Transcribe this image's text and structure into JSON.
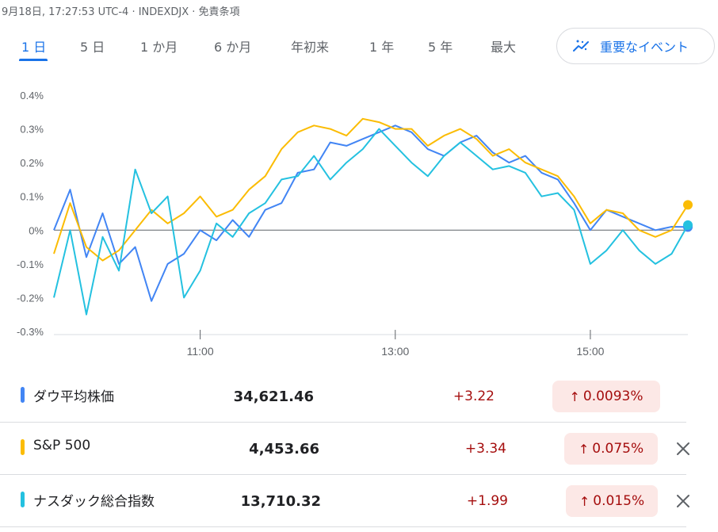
{
  "header": {
    "meta": "9月18日, 17:27:53 UTC-4 · INDEXDJX · 免責条項"
  },
  "tabs": [
    {
      "label": "1 日",
      "active": true
    },
    {
      "label": "5 日",
      "active": false
    },
    {
      "label": "1 か月",
      "active": false
    },
    {
      "label": "6 か月",
      "active": false
    },
    {
      "label": "年初来",
      "active": false
    },
    {
      "label": "1 年",
      "active": false
    },
    {
      "label": "5 年",
      "active": false
    },
    {
      "label": "最大",
      "active": false
    }
  ],
  "events_button": {
    "label": "重要なイベント",
    "icon": "trend-sparkle-icon"
  },
  "colors": {
    "dow": "#4285f4",
    "sp": "#fbbc04",
    "nasdaq": "#24c1e0",
    "accent": "#1a73e8",
    "negative": "#a50e0e",
    "negative_bg": "#fce8e6"
  },
  "chart_data": {
    "type": "line",
    "x_unit": "time of day",
    "x_range": [
      "09:30",
      "16:00"
    ],
    "x_ticks": [
      "11:00",
      "13:00",
      "15:00"
    ],
    "y_ticks": [
      "0.4%",
      "0.3%",
      "0.2%",
      "0.1%",
      "0%",
      "-0.1%",
      "-0.2%",
      "-0.3%"
    ],
    "ylim": [
      -0.3,
      0.4
    ],
    "baseline": 0,
    "series": [
      {
        "name": "ダウ平均株価",
        "color": "#4285f4",
        "points": [
          [
            "09:30",
            0.0
          ],
          [
            "09:40",
            0.12
          ],
          [
            "09:50",
            -0.08
          ],
          [
            "10:00",
            0.05
          ],
          [
            "10:10",
            -0.1
          ],
          [
            "10:20",
            -0.05
          ],
          [
            "10:30",
            -0.21
          ],
          [
            "10:40",
            -0.1
          ],
          [
            "10:50",
            -0.07
          ],
          [
            "11:00",
            0.0
          ],
          [
            "11:10",
            -0.03
          ],
          [
            "11:20",
            0.03
          ],
          [
            "11:30",
            -0.02
          ],
          [
            "11:40",
            0.06
          ],
          [
            "11:50",
            0.08
          ],
          [
            "12:00",
            0.17
          ],
          [
            "12:10",
            0.18
          ],
          [
            "12:20",
            0.26
          ],
          [
            "12:30",
            0.25
          ],
          [
            "12:40",
            0.27
          ],
          [
            "12:50",
            0.29
          ],
          [
            "13:00",
            0.31
          ],
          [
            "13:10",
            0.29
          ],
          [
            "13:20",
            0.24
          ],
          [
            "13:30",
            0.22
          ],
          [
            "13:40",
            0.26
          ],
          [
            "13:50",
            0.28
          ],
          [
            "14:00",
            0.23
          ],
          [
            "14:10",
            0.2
          ],
          [
            "14:20",
            0.22
          ],
          [
            "14:30",
            0.17
          ],
          [
            "14:40",
            0.15
          ],
          [
            "14:50",
            0.08
          ],
          [
            "15:00",
            0.0
          ],
          [
            "15:10",
            0.06
          ],
          [
            "15:20",
            0.04
          ],
          [
            "15:30",
            0.02
          ],
          [
            "15:40",
            0.0
          ],
          [
            "15:50",
            0.01
          ],
          [
            "16:00",
            0.0093
          ]
        ]
      },
      {
        "name": "S&P 500",
        "color": "#fbbc04",
        "points": [
          [
            "09:30",
            -0.07
          ],
          [
            "09:40",
            0.08
          ],
          [
            "09:50",
            -0.05
          ],
          [
            "10:00",
            -0.09
          ],
          [
            "10:10",
            -0.06
          ],
          [
            "10:20",
            0.0
          ],
          [
            "10:30",
            0.06
          ],
          [
            "10:40",
            0.02
          ],
          [
            "10:50",
            0.05
          ],
          [
            "11:00",
            0.1
          ],
          [
            "11:10",
            0.04
          ],
          [
            "11:20",
            0.06
          ],
          [
            "11:30",
            0.12
          ],
          [
            "11:40",
            0.16
          ],
          [
            "11:50",
            0.24
          ],
          [
            "12:00",
            0.29
          ],
          [
            "12:10",
            0.31
          ],
          [
            "12:20",
            0.3
          ],
          [
            "12:30",
            0.28
          ],
          [
            "12:40",
            0.33
          ],
          [
            "12:50",
            0.32
          ],
          [
            "13:00",
            0.3
          ],
          [
            "13:10",
            0.3
          ],
          [
            "13:20",
            0.25
          ],
          [
            "13:30",
            0.28
          ],
          [
            "13:40",
            0.3
          ],
          [
            "13:50",
            0.27
          ],
          [
            "14:00",
            0.22
          ],
          [
            "14:10",
            0.24
          ],
          [
            "14:20",
            0.2
          ],
          [
            "14:30",
            0.18
          ],
          [
            "14:40",
            0.16
          ],
          [
            "14:50",
            0.1
          ],
          [
            "15:00",
            0.02
          ],
          [
            "15:10",
            0.06
          ],
          [
            "15:20",
            0.05
          ],
          [
            "15:30",
            0.0
          ],
          [
            "15:40",
            -0.02
          ],
          [
            "15:50",
            0.0
          ],
          [
            "16:00",
            0.075
          ]
        ]
      },
      {
        "name": "ナスダック総合指数",
        "color": "#24c1e0",
        "points": [
          [
            "09:30",
            -0.2
          ],
          [
            "09:40",
            0.0
          ],
          [
            "09:50",
            -0.25
          ],
          [
            "10:00",
            -0.02
          ],
          [
            "10:10",
            -0.12
          ],
          [
            "10:20",
            0.18
          ],
          [
            "10:30",
            0.05
          ],
          [
            "10:40",
            0.1
          ],
          [
            "10:50",
            -0.2
          ],
          [
            "11:00",
            -0.12
          ],
          [
            "11:10",
            0.02
          ],
          [
            "11:20",
            -0.02
          ],
          [
            "11:30",
            0.05
          ],
          [
            "11:40",
            0.08
          ],
          [
            "11:50",
            0.15
          ],
          [
            "12:00",
            0.16
          ],
          [
            "12:10",
            0.22
          ],
          [
            "12:20",
            0.15
          ],
          [
            "12:30",
            0.2
          ],
          [
            "12:40",
            0.24
          ],
          [
            "12:50",
            0.3
          ],
          [
            "13:00",
            0.25
          ],
          [
            "13:10",
            0.2
          ],
          [
            "13:20",
            0.16
          ],
          [
            "13:30",
            0.22
          ],
          [
            "13:40",
            0.26
          ],
          [
            "13:50",
            0.22
          ],
          [
            "14:00",
            0.18
          ],
          [
            "14:10",
            0.19
          ],
          [
            "14:20",
            0.17
          ],
          [
            "14:30",
            0.1
          ],
          [
            "14:40",
            0.11
          ],
          [
            "14:50",
            0.06
          ],
          [
            "15:00",
            -0.1
          ],
          [
            "15:10",
            -0.06
          ],
          [
            "15:20",
            0.0
          ],
          [
            "15:30",
            -0.06
          ],
          [
            "15:40",
            -0.1
          ],
          [
            "15:50",
            -0.07
          ],
          [
            "16:00",
            0.015
          ]
        ]
      }
    ]
  },
  "indices": [
    {
      "name": "ダウ平均株価",
      "value": "34,621.46",
      "change": "+3.22",
      "percent": "0.0093%",
      "color": "#4285f4",
      "removable": false
    },
    {
      "name": "S&P 500",
      "value": "4,453.66",
      "change": "+3.34",
      "percent": "0.075%",
      "color": "#fbbc04",
      "removable": true
    },
    {
      "name": "ナスダック総合指数",
      "value": "13,710.32",
      "change": "+1.99",
      "percent": "0.015%",
      "color": "#24c1e0",
      "removable": true
    }
  ]
}
